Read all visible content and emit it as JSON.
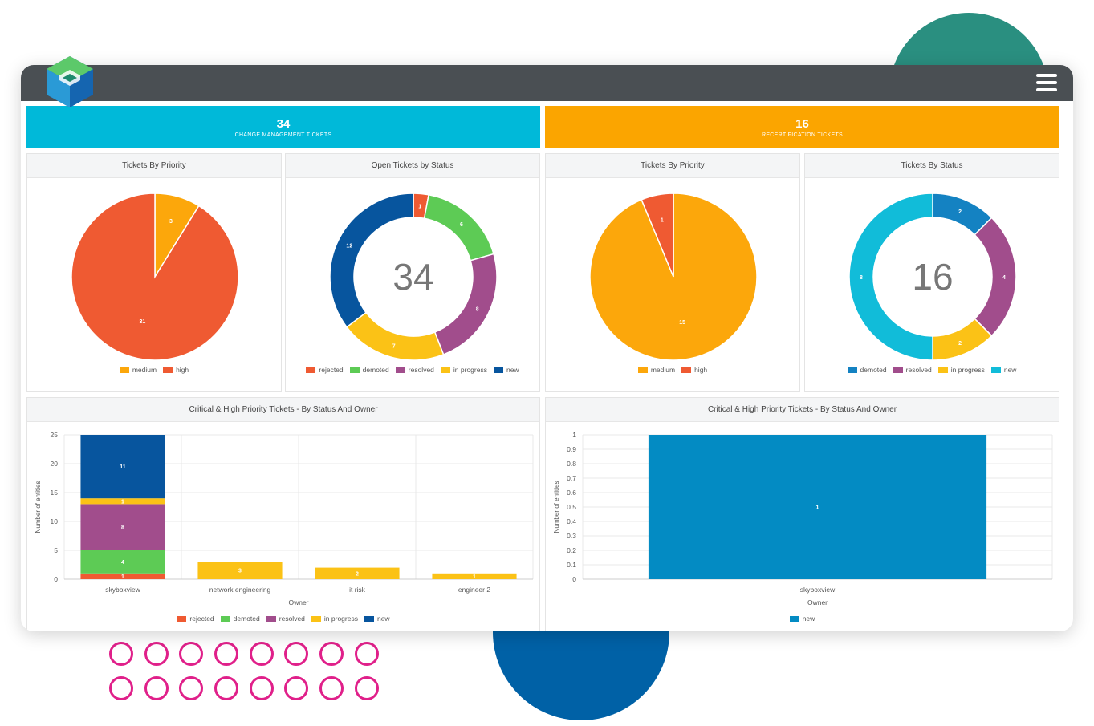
{
  "colors": {
    "rejected": "#ef5a32",
    "demoted": "#5dcb55",
    "resolved": "#a14d8c",
    "in_progress": "#fbc216",
    "new_dark": "#07559e",
    "medium": "#fca70b",
    "high": "#ef5a32",
    "demoted_teal": "#1482c2",
    "new_light": "#11bcd9",
    "new_bar": "#038bc3",
    "cm_banner": "#00b9d9",
    "recert_banner": "#fba500",
    "topbar": "#4a4f53"
  },
  "header": {
    "menu_icon": "hamburger-menu-icon",
    "logo_icon": "app-logo-icon"
  },
  "banners": {
    "change_mgmt": {
      "count": "34",
      "label": "CHANGE MANAGEMENT TICKETS"
    },
    "recert": {
      "count": "16",
      "label": "RECERTIFICATION TICKETS"
    }
  },
  "chart_data": [
    {
      "type": "pie",
      "title": "Tickets By Priority",
      "slices": [
        {
          "label": "medium",
          "value": 3
        },
        {
          "label": "high",
          "value": 31
        }
      ]
    },
    {
      "type": "pie",
      "title": "Open Tickets by Status",
      "center_label": "34",
      "slices": [
        {
          "label": "rejected",
          "value": 1
        },
        {
          "label": "demoted",
          "value": 6
        },
        {
          "label": "resolved",
          "value": 8
        },
        {
          "label": "in progress",
          "value": 7
        },
        {
          "label": "new",
          "value": 12
        }
      ]
    },
    {
      "type": "pie",
      "title": "Tickets By Priority",
      "slices": [
        {
          "label": "medium",
          "value": 15
        },
        {
          "label": "high",
          "value": 1
        }
      ]
    },
    {
      "type": "pie",
      "title": "Tickets By Status",
      "center_label": "16",
      "slices": [
        {
          "label": "demoted",
          "value": 2
        },
        {
          "label": "resolved",
          "value": 4
        },
        {
          "label": "in progress",
          "value": 2
        },
        {
          "label": "new",
          "value": 8
        }
      ]
    },
    {
      "type": "bar",
      "stacked": true,
      "title": "Critical & High Priority Tickets - By Status And Owner",
      "xlabel": "Owner",
      "ylabel": "Number of entities",
      "ylim": [
        0,
        25
      ],
      "yticks": [
        "0",
        "5",
        "10",
        "15",
        "20",
        "25"
      ],
      "categories": [
        "skyboxview",
        "network engineering",
        "it risk",
        "engineer 2"
      ],
      "series": [
        {
          "name": "rejected",
          "values": [
            1,
            0,
            0,
            0
          ]
        },
        {
          "name": "demoted",
          "values": [
            4,
            0,
            0,
            0
          ]
        },
        {
          "name": "resolved",
          "values": [
            8,
            0,
            0,
            0
          ]
        },
        {
          "name": "in progress",
          "values": [
            1,
            3,
            2,
            1
          ]
        },
        {
          "name": "new",
          "values": [
            11,
            0,
            0,
            0
          ]
        }
      ]
    },
    {
      "type": "bar",
      "title": "Critical & High Priority Tickets - By Status And Owner",
      "xlabel": "Owner",
      "ylabel": "Number of entities",
      "ylim": [
        0,
        1
      ],
      "yticks": [
        "0",
        "0.1",
        "0.2",
        "0.3",
        "0.4",
        "0.5",
        "0.6",
        "0.7",
        "0.8",
        "0.9",
        "1"
      ],
      "categories": [
        "skyboxview"
      ],
      "series": [
        {
          "name": "new",
          "values": [
            1
          ]
        }
      ]
    }
  ]
}
